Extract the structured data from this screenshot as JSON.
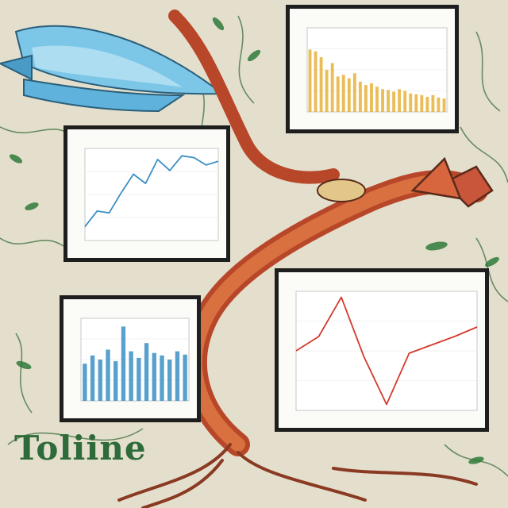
{
  "caption": "Toliine",
  "panels": [
    {
      "title": "",
      "type": "bar",
      "values": [
        0.74,
        0.72,
        0.65,
        0.5,
        0.58,
        0.42,
        0.44,
        0.4,
        0.46,
        0.36,
        0.32,
        0.34,
        0.3,
        0.27,
        0.26,
        0.24,
        0.27,
        0.25,
        0.22,
        0.21,
        0.2,
        0.18,
        0.2,
        0.17,
        0.16
      ]
    },
    {
      "title": "",
      "type": "line",
      "values": [
        0.15,
        0.32,
        0.3,
        0.52,
        0.72,
        0.62,
        0.88,
        0.76,
        0.92,
        0.9,
        0.82,
        0.86
      ]
    },
    {
      "title": "",
      "type": "bar",
      "values": [
        0.45,
        0.55,
        0.5,
        0.62,
        0.48,
        0.9,
        0.6,
        0.52,
        0.7,
        0.58,
        0.55,
        0.5,
        0.6,
        0.56
      ]
    },
    {
      "title": "",
      "type": "line",
      "values": [
        0.5,
        0.62,
        0.95,
        0.45,
        0.05,
        0.48,
        0.55,
        0.62,
        0.7
      ]
    }
  ]
}
